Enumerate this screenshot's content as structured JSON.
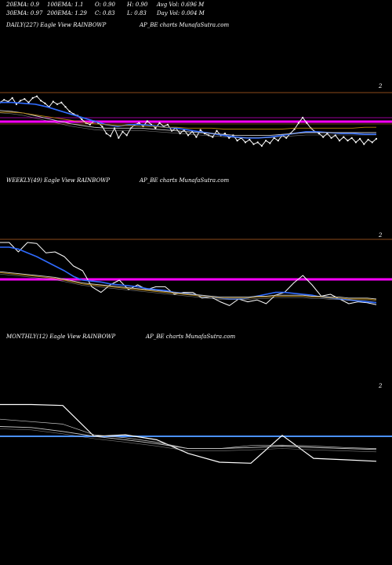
{
  "stats": {
    "ema20": "20EMA: 0.9",
    "ema100": "100EMA: 1.1",
    "open": "O: 0.90",
    "high": "H: 0.90",
    "avg_vol": "Avg Vol: 0.696  M",
    "ema30": "30EMA: 0.97",
    "ema200": "200EMA: 1.29",
    "close": "C: 0.83",
    "low": "L: 0.83",
    "day_vol": "Day Vol: 0.004  M"
  },
  "panels": {
    "daily": {
      "label": "DAILY(227) Eagle   View  RAINBOWP",
      "source": "AP_BE charts MunafaSutra.com",
      "ytick": "2"
    },
    "weekly": {
      "label": "WEEKLY(49) Eagle   View  RAINBOWP",
      "source": "AP_BE charts MunafaSutra.com",
      "ytick": "2"
    },
    "monthly": {
      "label": "MONTHLY(12) Eagle   View  RAINBOWP",
      "source": "AP_BE charts MunafaSutra.com",
      "ytick": "2"
    }
  },
  "colors": {
    "price": "#ffffff",
    "ema_fast": "#2f6bff",
    "ema_slow": "#c8c8c8",
    "ema_long": "#b8860b",
    "level_magenta": "#ff00ff",
    "level_blue": "#4a90ff",
    "ref_line": "#8b4a1a"
  },
  "chart_data": [
    {
      "type": "line",
      "title": "DAILY(227)",
      "series": [
        {
          "values": [
            1.95,
            1.98,
            1.96,
            2.0,
            1.93,
            1.97,
            1.99,
            1.95,
            2.0,
            2.02,
            1.97,
            1.94,
            1.9,
            1.96,
            1.93,
            1.95,
            1.9,
            1.85,
            1.82,
            1.8,
            1.76,
            1.72,
            1.7,
            1.74,
            1.72,
            1.68,
            1.6,
            1.57,
            1.66,
            1.55,
            1.62,
            1.58,
            1.66,
            1.7,
            1.72,
            1.68,
            1.74,
            1.7,
            1.66,
            1.72,
            1.68,
            1.7,
            1.63,
            1.66,
            1.6,
            1.64,
            1.58,
            1.62,
            1.56,
            1.64,
            1.6,
            1.58,
            1.56,
            1.63,
            1.58,
            1.6,
            1.55,
            1.58,
            1.52,
            1.55,
            1.5,
            1.53,
            1.48,
            1.5,
            1.46,
            1.52,
            1.49,
            1.55,
            1.52,
            1.58,
            1.55,
            1.6,
            1.65,
            1.72,
            1.78,
            1.72,
            1.66,
            1.62,
            1.6,
            1.56,
            1.6,
            1.55,
            1.58,
            1.52,
            1.56,
            1.52,
            1.55,
            1.5,
            1.54,
            1.48,
            1.53,
            1.5,
            1.54
          ]
        },
        {
          "values": [
            1.95,
            1.95,
            1.94,
            1.93,
            1.9,
            1.86,
            1.82,
            1.78,
            1.74,
            1.7,
            1.68,
            1.7,
            1.7,
            1.69,
            1.67,
            1.66,
            1.64,
            1.62,
            1.6,
            1.58,
            1.56,
            1.55,
            1.55,
            1.56,
            1.58,
            1.6,
            1.62,
            1.62,
            1.61,
            1.6,
            1.6,
            1.59,
            1.59
          ]
        },
        {
          "values": [
            1.86,
            1.85,
            1.83,
            1.8,
            1.77,
            1.74,
            1.71,
            1.69,
            1.67,
            1.66,
            1.66,
            1.66,
            1.66,
            1.65,
            1.64,
            1.63,
            1.62,
            1.61,
            1.6,
            1.59,
            1.58,
            1.58,
            1.58,
            1.58,
            1.59,
            1.6,
            1.61,
            1.61,
            1.61,
            1.61,
            1.61,
            1.61,
            1.61
          ]
        },
        {
          "values": [
            1.84,
            1.84,
            1.83,
            1.81,
            1.79,
            1.77,
            1.75,
            1.73,
            1.71,
            1.7,
            1.69,
            1.69,
            1.68,
            1.68,
            1.67,
            1.67,
            1.66,
            1.66,
            1.66,
            1.65,
            1.65,
            1.65,
            1.65,
            1.65,
            1.65,
            1.66,
            1.66,
            1.66,
            1.66,
            1.66,
            1.66,
            1.67,
            1.67
          ]
        }
      ],
      "ylim": [
        1.3,
        2.15
      ]
    },
    {
      "type": "line",
      "title": "WEEKLY(49)",
      "series": [
        {
          "values": [
            2.05,
            2.05,
            1.95,
            2.05,
            2.04,
            1.94,
            1.95,
            1.9,
            1.8,
            1.75,
            1.58,
            1.52,
            1.6,
            1.65,
            1.55,
            1.6,
            1.55,
            1.58,
            1.58,
            1.5,
            1.52,
            1.52,
            1.46,
            1.47,
            1.42,
            1.38,
            1.45,
            1.42,
            1.44,
            1.4,
            1.49,
            1.52,
            1.62,
            1.7,
            1.6,
            1.48,
            1.5,
            1.45,
            1.4,
            1.42,
            1.41,
            1.39
          ]
        },
        {
          "values": [
            2.0,
            2.0,
            1.98,
            1.94,
            1.9,
            1.85,
            1.8,
            1.75,
            1.69,
            1.65,
            1.64,
            1.63,
            1.61,
            1.6,
            1.59,
            1.58,
            1.56,
            1.55,
            1.54,
            1.52,
            1.51,
            1.5,
            1.48,
            1.47,
            1.46,
            1.45,
            1.45,
            1.46,
            1.48,
            1.5,
            1.52,
            1.52,
            1.51,
            1.5,
            1.49,
            1.47,
            1.46,
            1.45,
            1.44,
            1.43,
            1.42,
            1.41
          ]
        },
        {
          "values": [
            1.74,
            1.73,
            1.72,
            1.71,
            1.7,
            1.69,
            1.68,
            1.66,
            1.64,
            1.62,
            1.61,
            1.6,
            1.59,
            1.58,
            1.57,
            1.56,
            1.55,
            1.54,
            1.53,
            1.52,
            1.51,
            1.5,
            1.49,
            1.48,
            1.47,
            1.47,
            1.47,
            1.47,
            1.48,
            1.48,
            1.49,
            1.49,
            1.49,
            1.49,
            1.48,
            1.48,
            1.47,
            1.47,
            1.46,
            1.46,
            1.46,
            1.45
          ]
        },
        {
          "values": [
            1.73,
            1.72,
            1.71,
            1.7,
            1.69,
            1.68,
            1.67,
            1.65,
            1.63,
            1.61,
            1.6,
            1.59,
            1.58,
            1.57,
            1.56,
            1.55,
            1.54,
            1.53,
            1.52,
            1.51,
            1.5,
            1.49,
            1.48,
            1.47,
            1.46,
            1.46,
            1.46,
            1.46,
            1.47,
            1.47,
            1.48,
            1.48,
            1.48,
            1.48,
            1.47,
            1.47,
            1.46,
            1.46,
            1.45,
            1.45,
            1.45,
            1.44
          ]
        }
      ],
      "ylim": [
        1.3,
        2.1
      ]
    },
    {
      "type": "line",
      "title": "MONTHLY(12)",
      "series": [
        {
          "values": [
            2.4,
            2.4,
            2.38,
            1.75,
            1.78,
            1.68,
            1.4,
            1.22,
            1.2,
            1.77,
            1.3,
            1.27,
            1.24
          ]
        },
        {
          "values": [
            1.95,
            1.93,
            1.85,
            1.75,
            1.68,
            1.6,
            1.5,
            1.5,
            1.52,
            1.55,
            1.52,
            1.5,
            1.48
          ]
        },
        {
          "values": [
            2.1,
            2.05,
            2.0,
            1.78,
            1.72,
            1.63,
            1.5,
            1.5,
            1.56,
            1.57,
            1.55,
            1.52,
            1.5
          ]
        }
      ],
      "ylim": [
        0.9,
        2.6
      ]
    }
  ]
}
